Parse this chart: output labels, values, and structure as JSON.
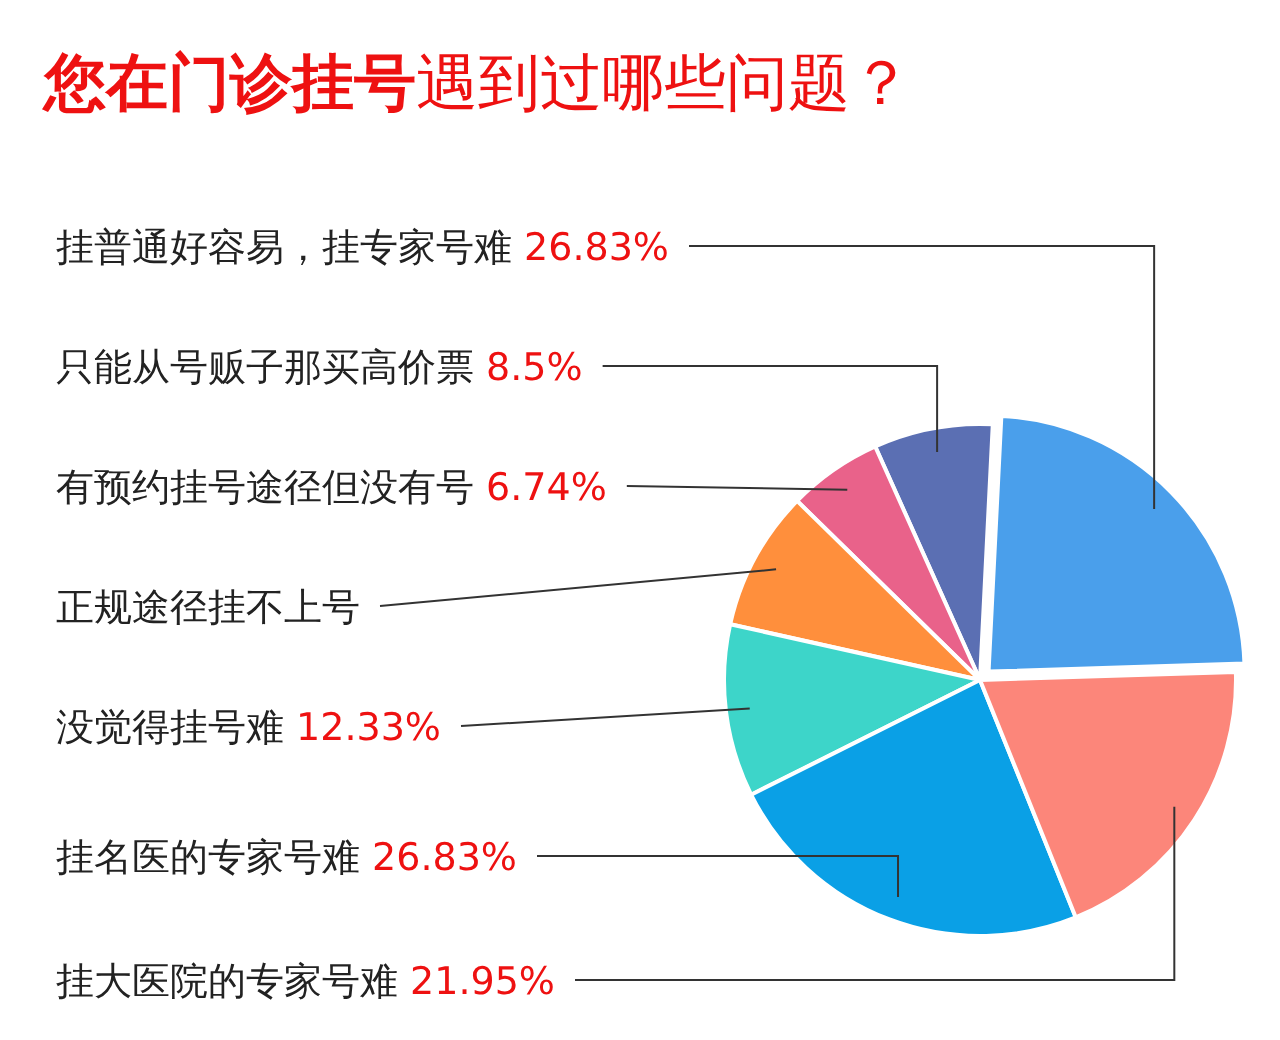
{
  "chart_data": {
    "type": "pie",
    "title": "**您在门诊挂号**遇到过哪些问题？",
    "categories": [
      "挂普通好容易，挂专家号难",
      "只能从号贩子那买高价票",
      "有预约挂号途径但没有号",
      "正规途径挂不上号",
      "没觉得挂号难",
      "挂名医的专家号难",
      "挂大医院的专家号难"
    ],
    "values": [
      26.83,
      8.5,
      6.74,
      10,
      12.33,
      26.83,
      21.95
    ],
    "value_labels": [
      "26.83%",
      "8.5%",
      "6.74%",
      null,
      "12.33%",
      "26.83%",
      "21.95%"
    ],
    "colors": [
      "#4a9feb",
      "#5b6fb3",
      "#e9628a",
      "#ff8f3c",
      "#3dd5c9",
      "#0aa0e6",
      "#fc867a"
    ]
  }
}
